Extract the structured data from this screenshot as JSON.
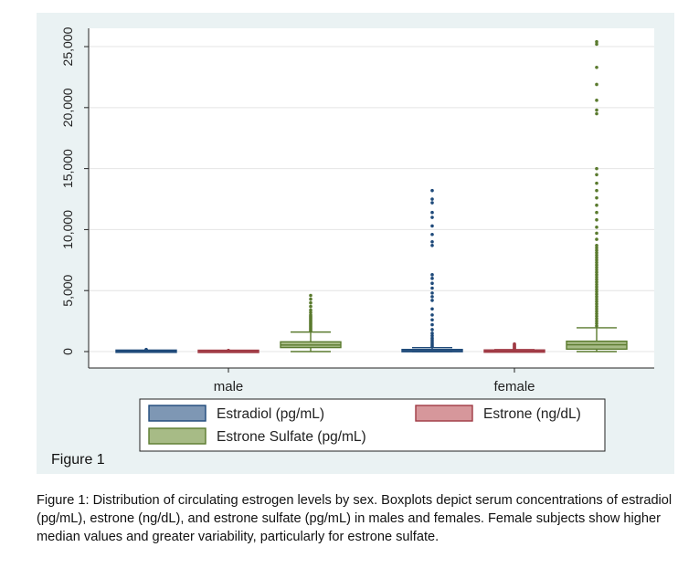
{
  "figure": {
    "label": "Figure 1",
    "caption": "Figure 1: Distribution of circulating estrogen levels by sex. Boxplots depict serum concentrations of estradiol (pg/mL), estrone (ng/dL), and estrone sulfate (pg/mL) in males and females. Female subjects show higher median values and greater variability, particularly for estrone sulfate."
  },
  "chart_data": {
    "type": "box",
    "categories": [
      "male",
      "female"
    ],
    "ylim": [
      0,
      26500
    ],
    "yticks": [
      0,
      5000,
      10000,
      15000,
      20000,
      25000
    ],
    "ytick_labels": [
      "0",
      "5,000",
      "10,000",
      "15,000",
      "20,000",
      "25,000"
    ],
    "grid": true,
    "legend_position": "bottom",
    "series": [
      {
        "name": "Estradiol (pg/mL)",
        "color": "#7e97b4",
        "edge": "#1f4a7a",
        "boxes": [
          {
            "category": "male",
            "min": 0,
            "q1": 10,
            "median": 25,
            "q3": 45,
            "max": 90,
            "outliers": [
              110,
              130,
              150,
              170
            ]
          },
          {
            "category": "female",
            "min": 0,
            "q1": 20,
            "median": 60,
            "q3": 140,
            "max": 320,
            "outliers": [
              400,
              520,
              650,
              800,
              950,
              1100,
              1300,
              1500,
              1800,
              2200,
              2600,
              3000,
              3500,
              4200,
              4500,
              4800,
              5200,
              5600,
              6000,
              6300,
              8700,
              9000,
              9600,
              10300,
              11000,
              11400,
              12200,
              12500,
              13200
            ]
          }
        ]
      },
      {
        "name": "Estrone (ng/dL)",
        "color": "#d6979b",
        "edge": "#a03a44",
        "boxes": [
          {
            "category": "male",
            "min": 0,
            "q1": 5,
            "median": 15,
            "q3": 30,
            "max": 60,
            "outliers": [
              70,
              80,
              90
            ]
          },
          {
            "category": "female",
            "min": 0,
            "q1": 10,
            "median": 30,
            "q3": 70,
            "max": 160,
            "outliers": [
              200,
              260,
              330,
              400,
              480,
              560,
              620
            ]
          }
        ]
      },
      {
        "name": "Estrone Sulfate (pg/mL)",
        "color": "#a7bb86",
        "edge": "#5a7a2e",
        "boxes": [
          {
            "category": "male",
            "min": 0,
            "q1": 330,
            "median": 540,
            "q3": 800,
            "max": 1600,
            "outliers": [
              1700,
              1800,
              1900,
              2000,
              2100,
              2200,
              2300,
              2400,
              2500,
              2600,
              2700,
              2800,
              2900,
              3000,
              3200,
              3400,
              3700,
              4000,
              4300,
              4600
            ]
          },
          {
            "category": "female",
            "min": 0,
            "q1": 200,
            "median": 560,
            "q3": 850,
            "max": 1950,
            "outliers": [
              2100,
              2300,
              2500,
              2700,
              2900,
              3100,
              3300,
              3500,
              3700,
              3900,
              4100,
              4300,
              4500,
              4700,
              4900,
              5100,
              5300,
              5500,
              5700,
              5900,
              6100,
              6300,
              6500,
              6700,
              6900,
              7100,
              7300,
              7500,
              7700,
              7900,
              8100,
              8300,
              8500,
              8700,
              9200,
              9700,
              10200,
              10800,
              11400,
              12000,
              12600,
              13200,
              13800,
              14500,
              15000,
              19500,
              19800,
              20600,
              21900,
              23300,
              25200,
              25400
            ]
          }
        ]
      }
    ]
  }
}
